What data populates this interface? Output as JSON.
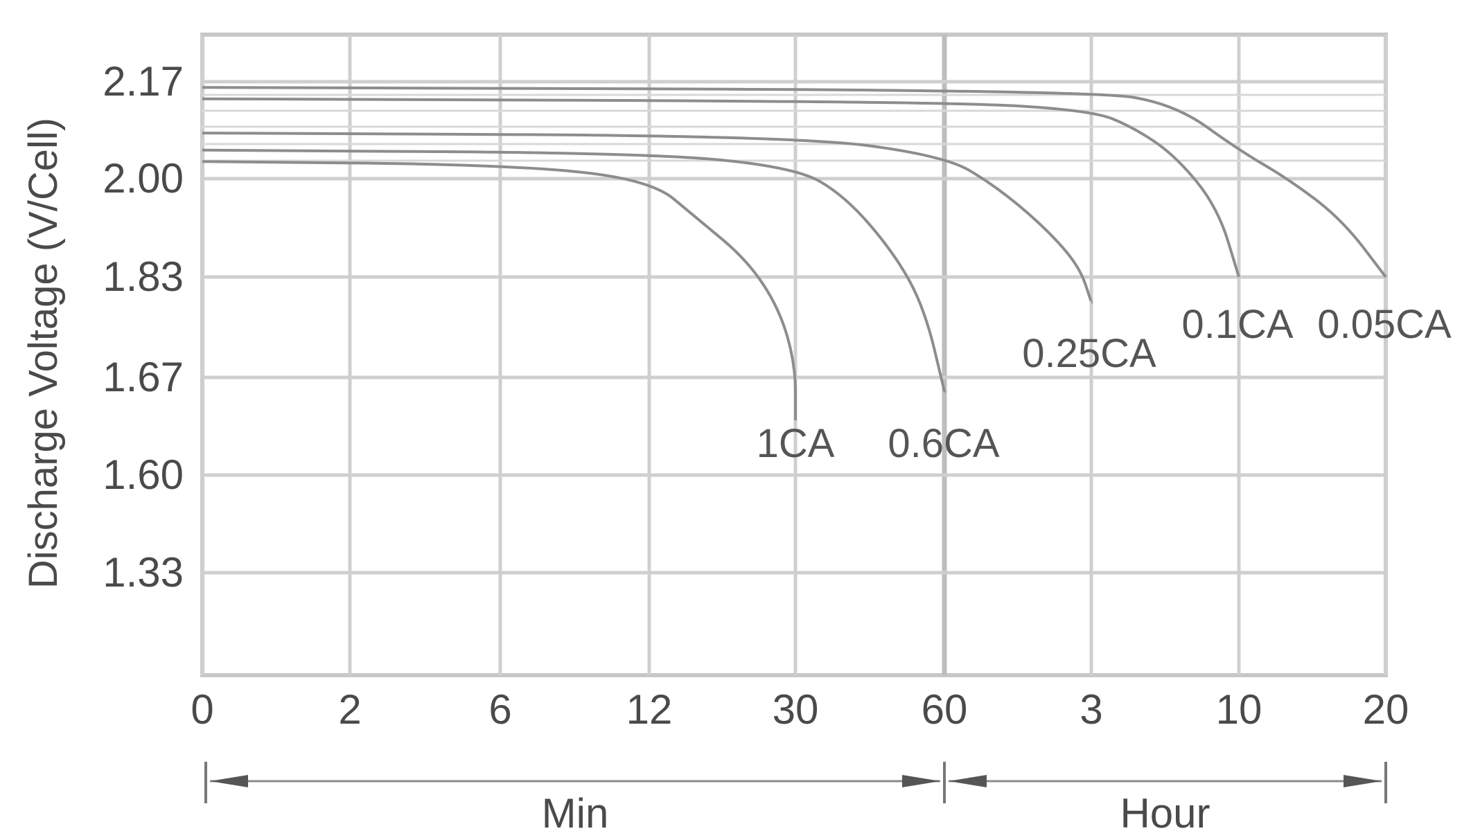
{
  "chart_data": {
    "type": "line",
    "title": "",
    "ylabel": "Discharge Voltage (V/Cell)",
    "xlabel": "",
    "y_ticks": [
      "2.17",
      "2.00",
      "1.83",
      "1.67",
      "1.60",
      "1.33"
    ],
    "x_ticks": [
      "0",
      "2",
      "6",
      "12",
      "30",
      "60",
      "3",
      "10",
      "20"
    ],
    "x_units": [
      {
        "label": "Min",
        "from_tick": 0,
        "to_tick": 5
      },
      {
        "label": "Hour",
        "from_tick": 5,
        "to_tick": 8
      }
    ],
    "grid": true,
    "series": [
      {
        "name": "1CA",
        "points": [
          [
            0,
            2.03
          ],
          [
            6,
            2.025
          ],
          [
            12,
            2.0
          ],
          [
            18,
            1.93
          ],
          [
            24,
            1.86
          ],
          [
            28,
            1.78
          ],
          [
            30,
            1.69
          ],
          [
            30,
            1.64
          ]
        ]
      },
      {
        "name": "0.6CA",
        "points": [
          [
            0,
            2.05
          ],
          [
            12,
            2.045
          ],
          [
            30,
            2.02
          ],
          [
            40,
            1.97
          ],
          [
            50,
            1.87
          ],
          [
            56,
            1.78
          ],
          [
            60,
            1.66
          ]
        ]
      },
      {
        "name": "0.25CA",
        "points": [
          [
            0,
            2.08
          ],
          [
            30,
            2.075
          ],
          [
            60,
            2.04
          ],
          [
            100,
            1.99
          ],
          [
            140,
            1.92
          ],
          [
            170,
            1.85
          ],
          [
            180,
            1.79
          ]
        ]
      },
      {
        "name": "0.1CA",
        "points": [
          [
            0,
            2.14
          ],
          [
            60,
            2.135
          ],
          [
            180,
            2.12
          ],
          [
            300,
            2.09
          ],
          [
            420,
            2.04
          ],
          [
            540,
            1.95
          ],
          [
            600,
            1.83
          ]
        ]
      },
      {
        "name": "0.05CA",
        "points": [
          [
            0,
            2.16
          ],
          [
            180,
            2.155
          ],
          [
            420,
            2.13
          ],
          [
            600,
            2.05
          ],
          [
            800,
            2.0
          ],
          [
            1020,
            1.93
          ],
          [
            1200,
            1.83
          ]
        ]
      }
    ]
  }
}
